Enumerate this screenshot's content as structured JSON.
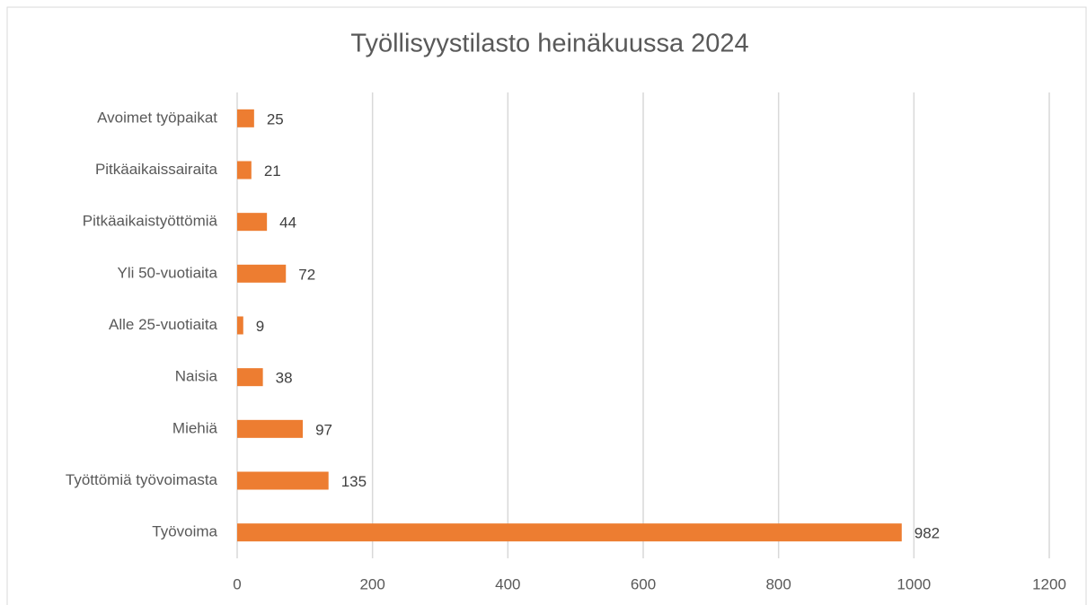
{
  "chart_data": {
    "type": "bar",
    "orientation": "horizontal",
    "title": "Työllisyystilasto heinäkuussa 2024",
    "categories": [
      "Avoimet työpaikat",
      "Pitkäaikaissairaita",
      "Pitkäaikaistyöttömiä",
      "Yli 50-vuotiaita",
      "Alle 25-vuotiaita",
      "Naisia",
      "Miehiä",
      "Työttömiä työvoimasta",
      "Työvoima"
    ],
    "values": [
      25,
      21,
      44,
      72,
      9,
      38,
      97,
      135,
      982
    ],
    "color": "#ed7d31",
    "xlim": [
      0,
      1200
    ],
    "xticks": [
      0,
      200,
      400,
      600,
      800,
      1000,
      1200
    ],
    "grid": true
  }
}
